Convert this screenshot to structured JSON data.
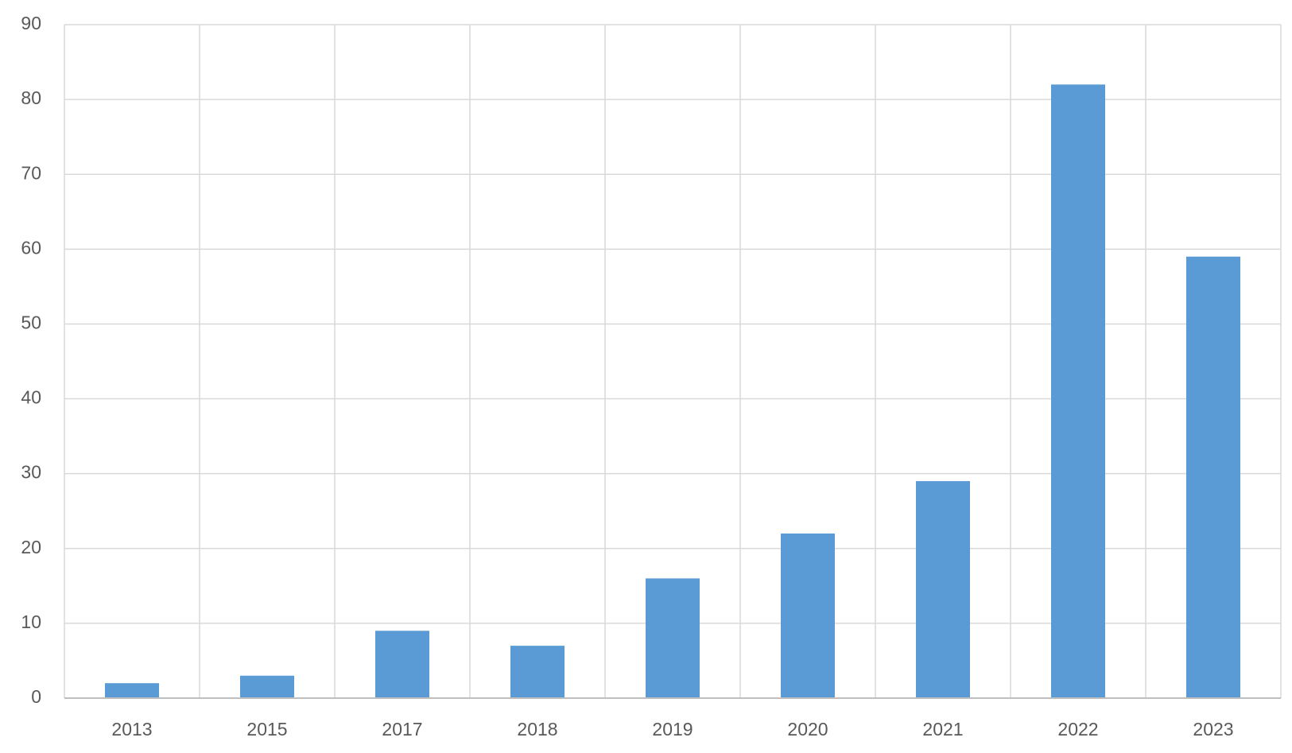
{
  "chart_data": {
    "type": "bar",
    "categories": [
      "2013",
      "2015",
      "2017",
      "2018",
      "2019",
      "2020",
      "2021",
      "2022",
      "2023"
    ],
    "values": [
      2,
      3,
      9,
      7,
      16,
      22,
      29,
      82,
      59
    ],
    "color": "#5b9bd5",
    "ylim": [
      0,
      90
    ],
    "yticks": [
      0,
      10,
      20,
      30,
      40,
      50,
      60,
      70,
      80,
      90
    ],
    "grid": true
  }
}
